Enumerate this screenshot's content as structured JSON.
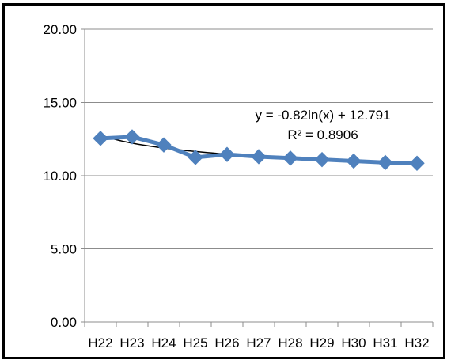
{
  "chart_data": {
    "type": "line",
    "title": "",
    "xlabel": "",
    "ylabel": "",
    "categories": [
      "H22",
      "H23",
      "H24",
      "H25",
      "H26",
      "H27",
      "H28",
      "H29",
      "H30",
      "H31",
      "H32"
    ],
    "series": [
      {
        "values": [
          12.55,
          12.65,
          12.1,
          11.25,
          11.45,
          11.3,
          11.2,
          11.1,
          11.0,
          10.9,
          10.85
        ],
        "color": "#4F81BD",
        "marker": "diamond"
      }
    ],
    "trendline": {
      "type": "logarithmic",
      "a": -0.82,
      "b": 12.791,
      "color": "#000000",
      "equation_label": "y = -0.82ln(x) + 12.791",
      "r2_label": "R² = 0.8906"
    },
    "ylim": [
      0,
      20
    ],
    "y_ticks": [
      "0.00",
      "5.00",
      "10.00",
      "15.00",
      "20.00"
    ],
    "grid": true,
    "legend": "none"
  }
}
